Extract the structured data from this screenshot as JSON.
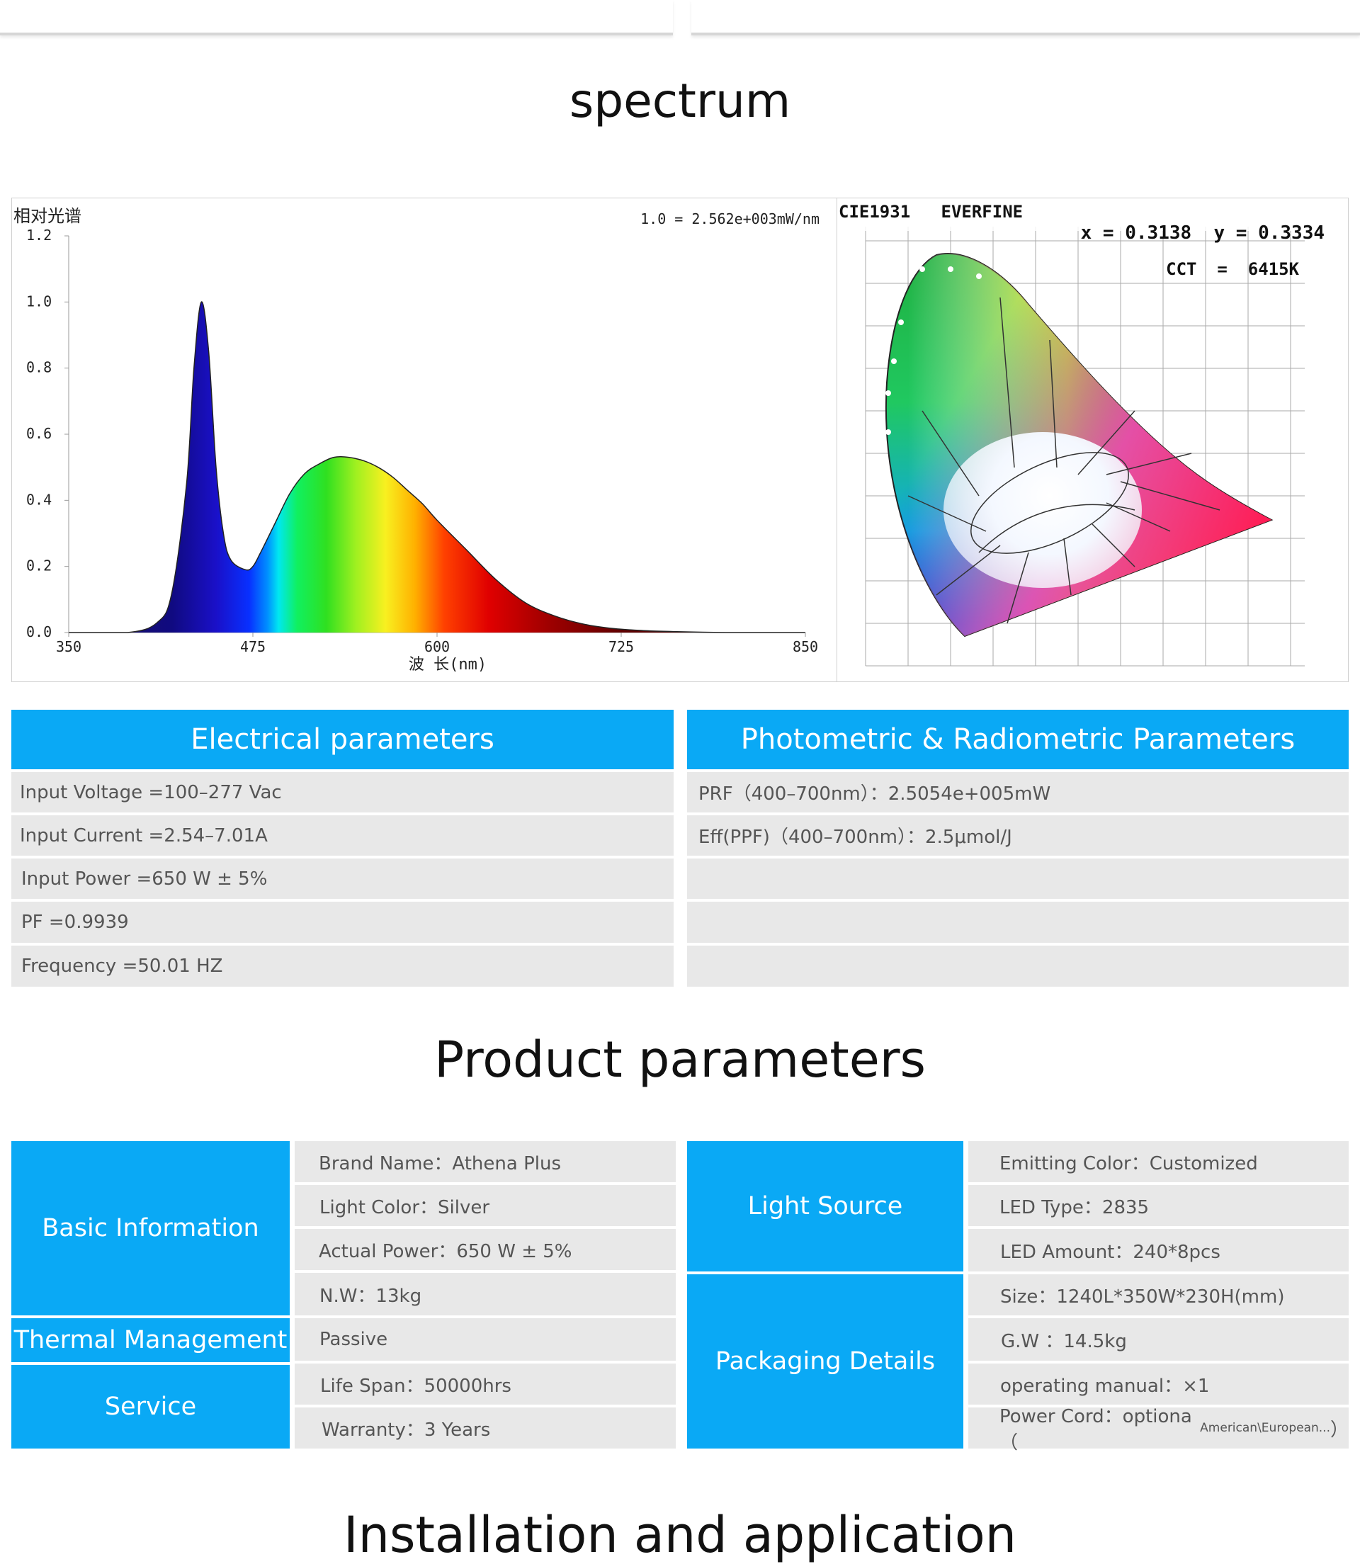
{
  "spectrum_title": "spectrum",
  "spd_chart": {
    "y_title": "相对光谱",
    "scale_note": "1.0 = 2.562e+003mW/nm",
    "x_label": "波 长(nm)",
    "x_ticks": [
      "350",
      "475",
      "600",
      "725",
      "850"
    ],
    "y_ticks": [
      "0.0",
      "0.2",
      "0.4",
      "0.6",
      "0.8",
      "1.0",
      "1.2"
    ]
  },
  "chart_data": {
    "type": "area",
    "x": [
      350,
      390,
      410,
      420,
      430,
      435,
      440,
      445,
      450,
      455,
      460,
      470,
      475,
      480,
      490,
      500,
      510,
      520,
      530,
      540,
      550,
      560,
      570,
      580,
      590,
      600,
      620,
      640,
      660,
      680,
      700,
      720,
      740,
      760,
      780,
      800,
      850
    ],
    "y": [
      0.0,
      0.0,
      0.03,
      0.12,
      0.45,
      0.8,
      1.0,
      0.85,
      0.5,
      0.3,
      0.22,
      0.19,
      0.2,
      0.24,
      0.33,
      0.42,
      0.48,
      0.51,
      0.53,
      0.53,
      0.52,
      0.5,
      0.47,
      0.43,
      0.39,
      0.34,
      0.25,
      0.16,
      0.09,
      0.05,
      0.025,
      0.012,
      0.006,
      0.003,
      0.001,
      0.0,
      0.0
    ],
    "xlabel": "波 长(nm)",
    "ylabel": "相对光谱",
    "xlim": [
      350,
      850
    ],
    "ylim": [
      0,
      1.2
    ],
    "annotation": "1.0 = 2.562e+003mW/nm"
  },
  "cie": {
    "header": "CIE1931   EVERFINE",
    "coords": "x = 0.3138  y = 0.3334",
    "cct": "CCT  =  6415K"
  },
  "electrical": {
    "title": "Electrical parameters",
    "rows": [
      "Input Voltage  =100–277 Vac",
      "Input Current =2.54–7.01A",
      "Input Power   =650 W ± 5%",
      "PF  =0.9939",
      "Frequency =50.01 HZ"
    ]
  },
  "photometric": {
    "title": "Photometric & Radiometric Parameters",
    "rows": [
      "PRF（400–700nm）：2.5054e+005mW",
      "Eff(PPF)（400–700nm）：2.5μmol/J",
      "",
      "",
      ""
    ]
  },
  "product_title": "Product parameters",
  "left_table": {
    "basic": "Basic Information",
    "thermal": "Thermal Management",
    "service": "Service",
    "rows": [
      "Brand Name：Athena Plus",
      "Light  Color：Silver",
      "Actual Power：650 W ± 5%",
      "N.W：13kg",
      "Passive",
      "Life Span：50000hrs",
      "Warranty：3 Years"
    ]
  },
  "right_table": {
    "light_source": "Light Source",
    "packaging": "Packaging Details",
    "rows": [
      "Emitting Color：Customized",
      "LED Type：2835",
      "LED Amount：240*8pcs",
      "Size：1240L*350W*230H(mm)",
      "G.W  ：14.5kg",
      "operating manual：×1",
      "Power Cord：optiona  （"
    ],
    "power_cord_note": "American\\European...",
    "power_cord_close": "）"
  },
  "install_title": "Installation and application"
}
